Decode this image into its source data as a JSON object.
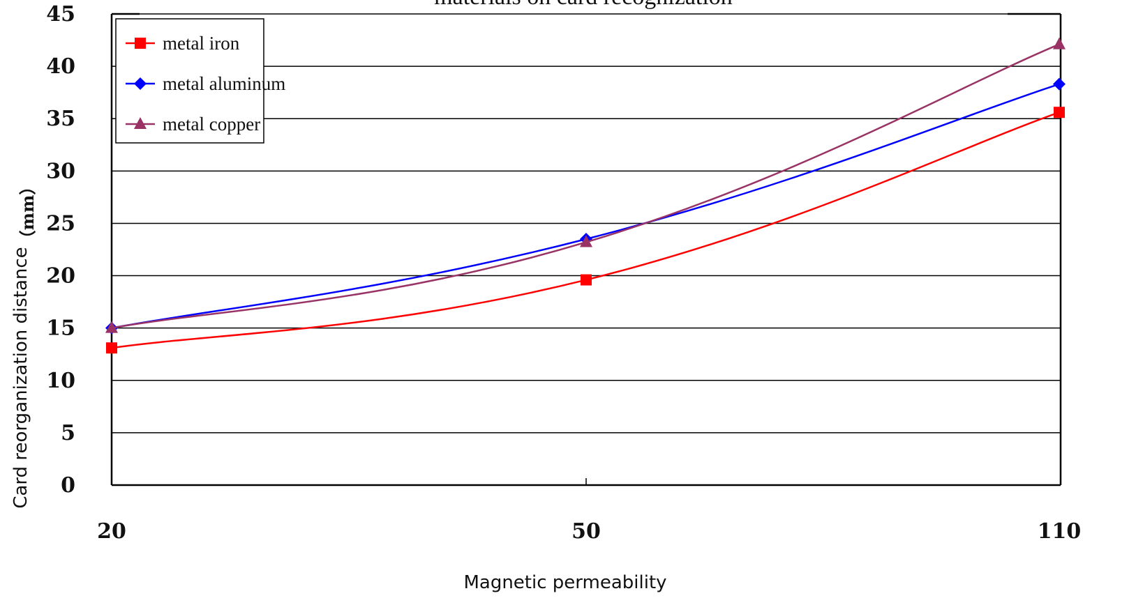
{
  "chart_data": {
    "type": "line",
    "title": "materials on card recognization",
    "xlabel": "Magnetic permeability",
    "ylabel": "Card reorganization distance",
    "ylabel_unit": "（mm）",
    "categories": [
      "20",
      "50",
      "110"
    ],
    "ylim": [
      0,
      45
    ],
    "yticks": [
      0,
      5,
      10,
      15,
      20,
      25,
      30,
      35,
      40,
      45
    ],
    "grid": true,
    "legend_position": "top-left",
    "series": [
      {
        "name": "metal iron",
        "color": "#ff0000",
        "marker": "square",
        "values": [
          13.1,
          19.6,
          35.6
        ]
      },
      {
        "name": "metal aluminum",
        "color": "#0000ff",
        "marker": "diamond",
        "values": [
          15.0,
          23.5,
          38.3
        ]
      },
      {
        "name": "metal copper",
        "color": "#993366",
        "marker": "triangle",
        "values": [
          15.0,
          23.2,
          42.1
        ]
      }
    ]
  }
}
